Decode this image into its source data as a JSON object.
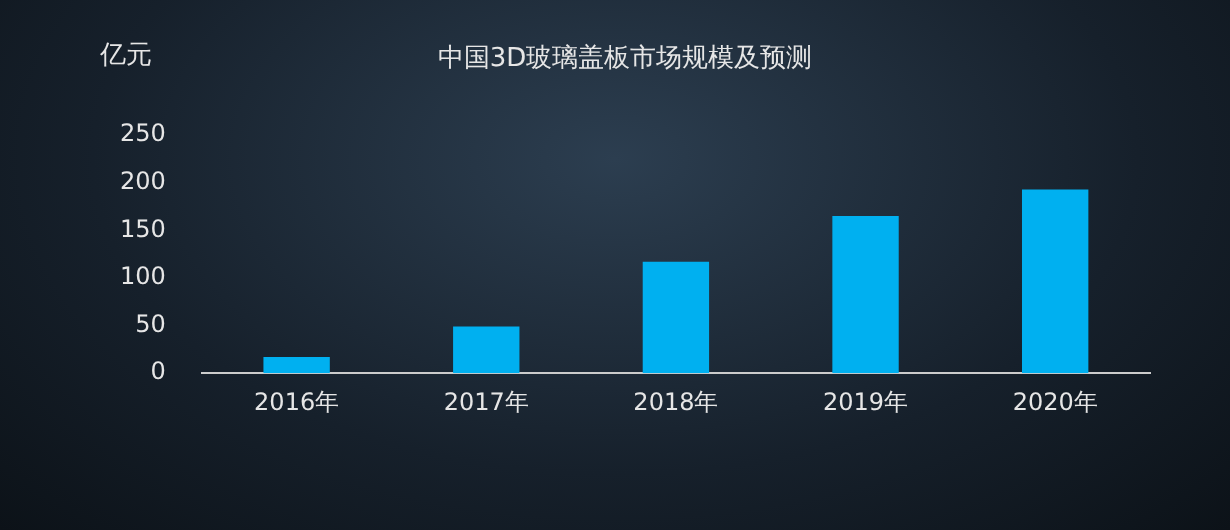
{
  "chart_data": {
    "type": "bar",
    "title": "中国3D玻璃盖板市场规模及预测",
    "ylabel": "亿元",
    "categories": [
      "2016年",
      "2017年",
      "2018年",
      "2019年",
      "2020年"
    ],
    "values": [
      17,
      49,
      117,
      165,
      193
    ],
    "color": "#00b0f0",
    "ylim": [
      0,
      250
    ],
    "yticks": [
      0,
      50,
      100,
      150,
      200,
      250
    ],
    "grid": false,
    "legend": false
  }
}
